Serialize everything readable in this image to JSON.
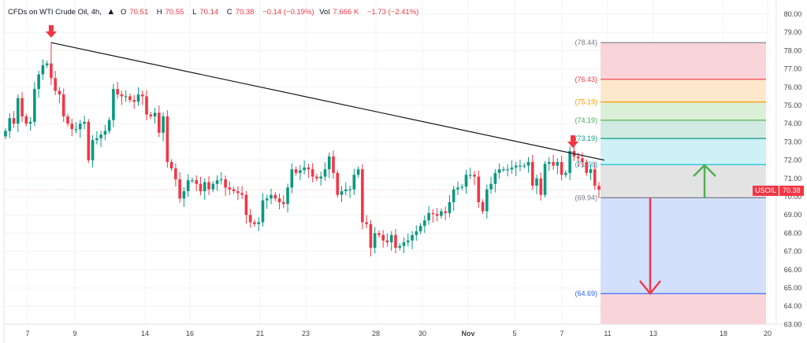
{
  "header": {
    "symbol_title": "CFDs on WTI Crude Oil, 4h,",
    "logo_icon": "oil-drop-logo-icon",
    "o_label": "O",
    "o_value": "70.51",
    "h_label": "H",
    "h_value": "70.55",
    "l_label": "L",
    "l_value": "70.14",
    "c_label": "C",
    "c_value": "70.38",
    "change": "−0.14 (−0.19%)",
    "vol_label": "Vol",
    "vol_value": "7.666 K",
    "vol_change": "−1.73 (−2.41%)"
  },
  "price_tag": {
    "symbol": "USOIL",
    "price": "70.38"
  },
  "colors": {
    "up": "#089981",
    "down": "#f23645",
    "trendline": "#131722"
  },
  "chart_data": {
    "type": "candlestick",
    "ylim": [
      63,
      80
    ],
    "y_ticks": [
      "80.00",
      "79.00",
      "78.00",
      "77.00",
      "76.00",
      "75.00",
      "74.00",
      "73.00",
      "72.00",
      "71.00",
      "70.00",
      "69.00",
      "68.00",
      "67.00",
      "66.00",
      "65.00",
      "64.00",
      "63.00"
    ],
    "x_ticks": [
      "7",
      "9",
      "14",
      "16",
      "21",
      "23",
      "28",
      "30",
      "Nov",
      "5",
      "7",
      "11",
      "13",
      "18",
      "20"
    ],
    "grid": true,
    "closes": [
      73.6,
      74.3,
      74.0,
      75.4,
      74.4,
      74.0,
      74.1,
      75.9,
      76.7,
      77.2,
      77.3,
      76.5,
      75.8,
      75.6,
      74.4,
      74.0,
      73.7,
      73.7,
      74.0,
      74.1,
      72.0,
      73.1,
      73.2,
      73.4,
      73.6,
      74.2,
      75.9,
      75.6,
      75.5,
      75.5,
      75.3,
      75.2,
      75.6,
      75.5,
      74.5,
      74.4,
      74.6,
      73.5,
      74.4,
      71.9,
      71.55,
      70.95,
      69.9,
      70.3,
      70.9,
      70.9,
      70.7,
      70.3,
      70.8,
      70.4,
      70.7,
      70.9,
      70.95,
      70.5,
      70.4,
      70.3,
      70.2,
      70.1,
      69.0,
      68.6,
      68.5,
      68.6,
      69.8,
      69.9,
      70.1,
      69.9,
      69.7,
      69.6,
      70.5,
      71.5,
      71.3,
      71.45,
      71.6,
      71.5,
      71.1,
      71.0,
      71.1,
      71.5,
      72.2,
      71.3,
      70.1,
      70.3,
      70.4,
      70.4,
      71.2,
      71.5,
      68.6,
      68.5,
      67.2,
      68.0,
      67.9,
      67.6,
      67.5,
      67.9,
      67.2,
      67.3,
      67.5,
      67.6,
      67.9,
      68.1,
      68.4,
      68.7,
      69.1,
      69.05,
      68.95,
      69.2,
      69.1,
      69.7,
      70.4,
      70.5,
      70.55,
      71.2,
      71.2,
      71.1,
      69.7,
      69.2,
      70.4,
      70.7,
      71.3,
      71.5,
      71.5,
      71.5,
      71.6,
      71.7,
      71.7,
      71.7,
      71.9,
      70.6,
      71.0,
      70.1,
      71.8,
      71.9,
      71.7,
      71.9,
      71.2,
      71.3,
      72.5,
      72.2,
      72.1,
      71.9,
      71.3,
      71.5,
      70.6,
      70.38
    ],
    "peak_high": 78.44,
    "trendline": {
      "from_price": 78.44,
      "to_price": 72.0
    },
    "fib_levels": [
      {
        "label": "(78.44)",
        "price": 78.44,
        "color": "#787b86",
        "fill": "#f9d5d9"
      },
      {
        "label": "(76.43)",
        "price": 76.43,
        "color": "#f23645",
        "fill": "#fde8cc"
      },
      {
        "label": "(75.19)",
        "price": 75.19,
        "color": "#ff9800",
        "fill": "#dcefd8"
      },
      {
        "label": "(74.19)",
        "price": 74.19,
        "color": "#4caf50",
        "fill": "#d2ebe2"
      },
      {
        "label": "(73.19)",
        "price": 73.19,
        "color": "#089981",
        "fill": "#cdf1f6"
      },
      {
        "label": "(71.76)",
        "price": 71.76,
        "color": "#00bcd4",
        "fill": "#e3e3e3"
      },
      {
        "label": "(69.94)",
        "price": 69.94,
        "color": "#787b86",
        "fill": "#d3e0fb"
      },
      {
        "label": "(64.69)",
        "price": 64.69,
        "color": "#2962ff",
        "fill": "#f9d5d9"
      }
    ],
    "current_price": 70.38
  }
}
